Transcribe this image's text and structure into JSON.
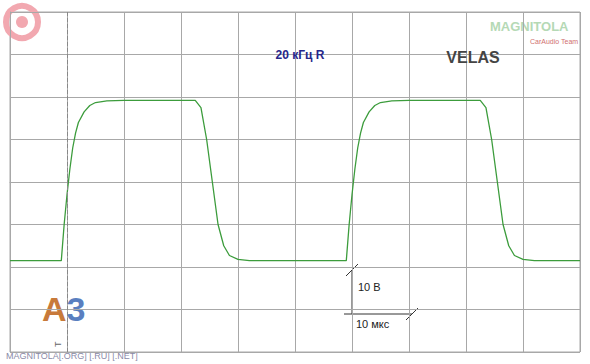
{
  "chart_data": {
    "type": "line",
    "title": "20 кГц R",
    "subtitle": "VELAS",
    "x": [
      0,
      9.0,
      9.5,
      10,
      10.5,
      11,
      11.5,
      12,
      13,
      14,
      15,
      17,
      20,
      32.5,
      33.5,
      34.5,
      35.5,
      36.5,
      37.5,
      38.5,
      40,
      42,
      59,
      59.5,
      60,
      60.5,
      61,
      61.5,
      62,
      63,
      64,
      65,
      67,
      70,
      82.5,
      83.5,
      84.5,
      85.5,
      86.5,
      87.5,
      88.5,
      90,
      92,
      100
    ],
    "values": [
      -18.5,
      -18.5,
      -10,
      -3,
      3,
      8,
      11.5,
      14,
      16.5,
      18,
      18.7,
      19.1,
      19.2,
      19.2,
      17.5,
      10,
      0,
      -10,
      -15,
      -17.3,
      -18.2,
      -18.5,
      -18.5,
      -10,
      -3,
      3,
      8,
      11.5,
      14,
      16.5,
      18,
      18.7,
      19.1,
      19.2,
      19.2,
      17.5,
      10,
      0,
      -10,
      -15,
      -17.3,
      -18.2,
      -18.5,
      -18.5
    ],
    "color": "#3c9c3c",
    "xlim": [
      0,
      100
    ],
    "xticks": [
      0,
      10,
      20,
      30,
      40,
      50,
      60,
      70,
      80,
      90,
      100
    ],
    "ylim": [
      -40,
      40
    ],
    "yticks": [
      -40,
      -30,
      -20,
      -10,
      0,
      10,
      20,
      30,
      40
    ],
    "grid": true,
    "tick_labels": false,
    "trigger": {
      "x": 10,
      "label": "T"
    },
    "scale_labels": {
      "volts": "10 В",
      "time": "10 мкс"
    },
    "watermarks": {
      "site": "MAGNITOLA",
      "team": "CarAudio Team",
      "logo": "A3",
      "footer": "MAGNITOLA[.ORG] [.RU] [.NET]"
    }
  }
}
